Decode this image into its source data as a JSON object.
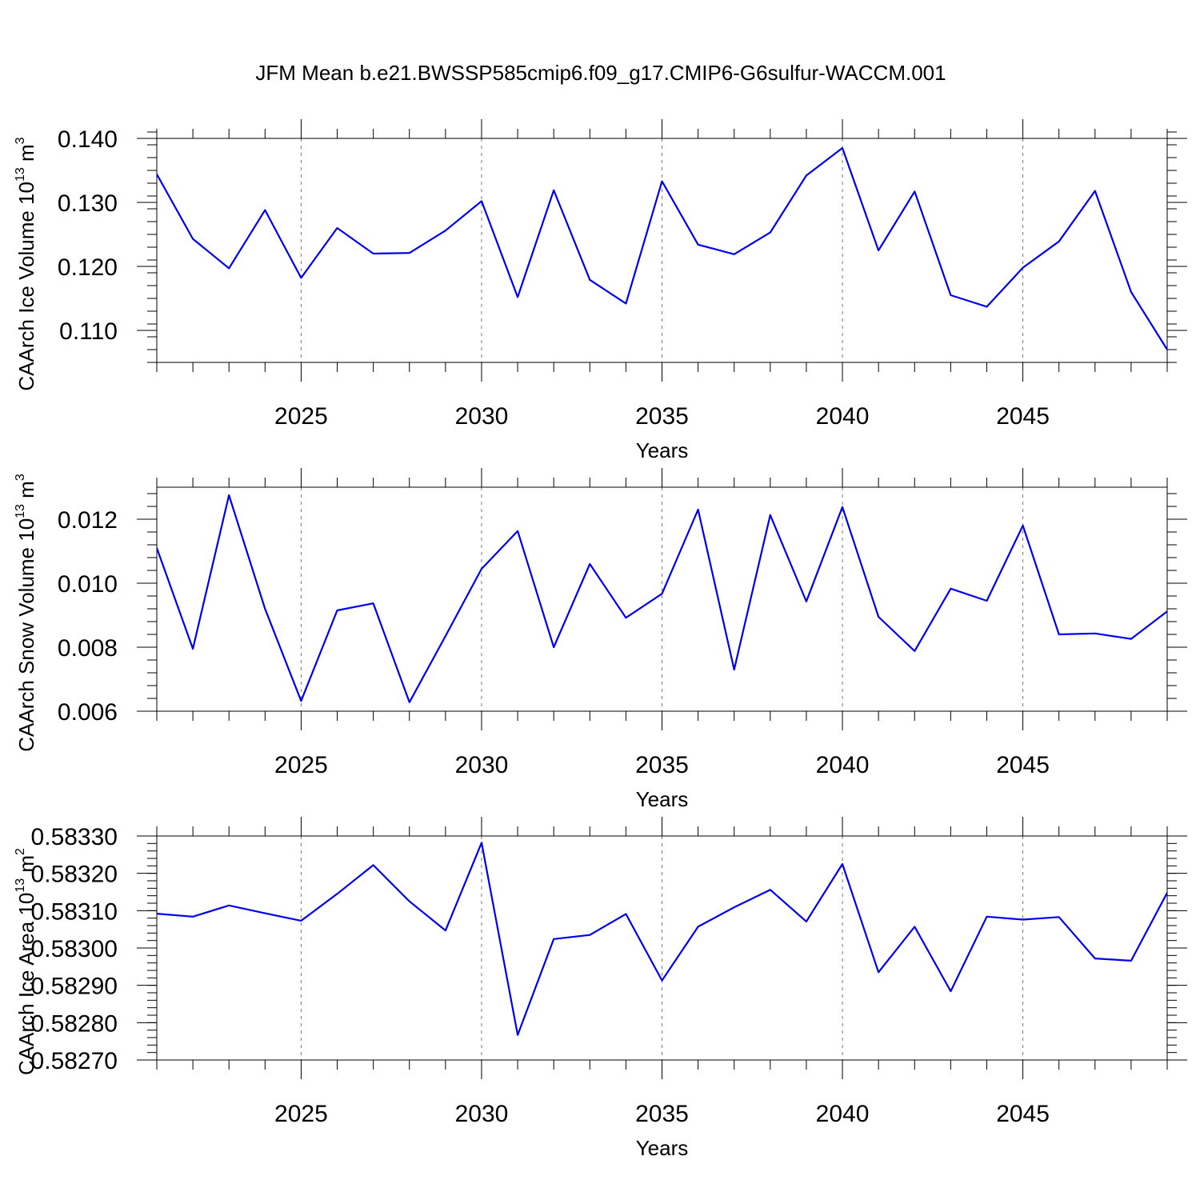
{
  "figure_title": "JFM Mean b.e21.BWSSP585cmip6.f09_g17.CMIP6-G6sulfur-WACCM.001",
  "line_color": "#0000ee",
  "chart_data": [
    {
      "type": "line",
      "title": "JFM Mean b.e21.BWSSP585cmip6.f09_g17.CMIP6-G6sulfur-WACCM.001",
      "xlabel": "Years",
      "ylabel": "CAArch Ice Volume 10",
      "ylabel_exp": "13",
      "ylabel_unit": "m",
      "ylabel_unit_exp": "3",
      "xlim": [
        2021,
        2049
      ],
      "ylim": [
        0.105,
        0.14
      ],
      "x_ticks": [
        2025,
        2030,
        2035,
        2040,
        2045
      ],
      "x_tick_labels": [
        "2025",
        "2030",
        "2035",
        "2040",
        "2045"
      ],
      "y_ticks": [
        0.11,
        0.12,
        0.13,
        0.14
      ],
      "y_tick_labels": [
        "0.110",
        "0.120",
        "0.130",
        "0.140"
      ],
      "y_minor_step": 0.002,
      "grid": "x-major-dashed",
      "x": [
        2021,
        2022,
        2023,
        2024,
        2025,
        2026,
        2027,
        2028,
        2029,
        2030,
        2031,
        2032,
        2033,
        2034,
        2035,
        2036,
        2037,
        2038,
        2039,
        2040,
        2041,
        2042,
        2043,
        2044,
        2045,
        2046,
        2047,
        2048,
        2049
      ],
      "values": [
        0.1344,
        0.1243,
        0.1197,
        0.1288,
        0.1182,
        0.126,
        0.122,
        0.1221,
        0.1256,
        0.1302,
        0.1152,
        0.1319,
        0.1179,
        0.1142,
        0.1333,
        0.1234,
        0.1219,
        0.1253,
        0.1342,
        0.1385,
        0.1225,
        0.1317,
        0.1155,
        0.1137,
        0.1198,
        0.1239,
        0.1318,
        0.116,
        0.107
      ]
    },
    {
      "type": "line",
      "xlabel": "Years",
      "ylabel": "CAArch Snow Volume 10",
      "ylabel_exp": "13",
      "ylabel_unit": "m",
      "ylabel_unit_exp": "3",
      "xlim": [
        2021,
        2049
      ],
      "ylim": [
        0.006,
        0.013
      ],
      "x_ticks": [
        2025,
        2030,
        2035,
        2040,
        2045
      ],
      "x_tick_labels": [
        "2025",
        "2030",
        "2035",
        "2040",
        "2045"
      ],
      "y_ticks": [
        0.006,
        0.008,
        0.01,
        0.012
      ],
      "y_tick_labels": [
        "0.006",
        "0.008",
        "0.010",
        "0.012"
      ],
      "y_minor_step": 0.0004,
      "grid": "x-major-dashed",
      "x": [
        2021,
        2022,
        2023,
        2024,
        2025,
        2026,
        2027,
        2028,
        2029,
        2030,
        2031,
        2032,
        2033,
        2034,
        2035,
        2036,
        2037,
        2038,
        2039,
        2040,
        2041,
        2042,
        2043,
        2044,
        2045,
        2046,
        2047,
        2048,
        2049
      ],
      "values": [
        0.0111,
        0.00795,
        0.01275,
        0.0092,
        0.00632,
        0.00915,
        0.00937,
        0.00628,
        0.00835,
        0.01045,
        0.01163,
        0.008,
        0.0106,
        0.00892,
        0.00967,
        0.0123,
        0.0073,
        0.01213,
        0.00943,
        0.01238,
        0.00895,
        0.00788,
        0.00983,
        0.00945,
        0.0118,
        0.0084,
        0.00843,
        0.00826,
        0.00912
      ]
    },
    {
      "type": "line",
      "xlabel": "Years",
      "ylabel": "CAArch Ice Area 10",
      "ylabel_exp": "13",
      "ylabel_unit": "m",
      "ylabel_unit_exp": "2",
      "xlim": [
        2021,
        2049
      ],
      "ylim": [
        0.5827,
        0.5833
      ],
      "x_ticks": [
        2025,
        2030,
        2035,
        2040,
        2045
      ],
      "x_tick_labels": [
        "2025",
        "2030",
        "2035",
        "2040",
        "2045"
      ],
      "y_ticks": [
        0.5827,
        0.5828,
        0.5829,
        0.583,
        0.5831,
        0.5832,
        0.5833
      ],
      "y_tick_labels": [
        "0.58270",
        "0.58280",
        "0.58290",
        "0.58300",
        "0.58310",
        "0.58320",
        "0.58330"
      ],
      "y_minor_step": 2e-05,
      "grid": "x-major-dashed",
      "x": [
        2021,
        2022,
        2023,
        2024,
        2025,
        2026,
        2027,
        2028,
        2029,
        2030,
        2031,
        2032,
        2033,
        2034,
        2035,
        2036,
        2037,
        2038,
        2039,
        2040,
        2041,
        2042,
        2043,
        2044,
        2045,
        2046,
        2047,
        2048,
        2049
      ],
      "values": [
        0.583092,
        0.583084,
        0.583114,
        0.583093,
        0.583073,
        0.583145,
        0.583222,
        0.583125,
        0.583047,
        0.583282,
        0.582767,
        0.583024,
        0.583035,
        0.583091,
        0.582913,
        0.583057,
        0.583109,
        0.583156,
        0.583071,
        0.583225,
        0.582935,
        0.583057,
        0.582884,
        0.583084,
        0.583076,
        0.583083,
        0.582972,
        0.582966,
        0.583148
      ]
    }
  ]
}
